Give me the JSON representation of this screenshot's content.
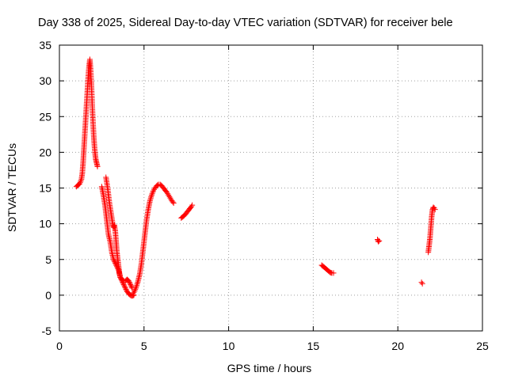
{
  "chart_data": {
    "type": "scatter",
    "title": "Day 338 of 2025, Sidereal Day-to-day VTEC variation (SDTVAR) for receiver bele",
    "xlabel": "GPS time / hours",
    "ylabel": "SDTVAR / TECUs",
    "xlim": [
      0,
      25
    ],
    "ylim": [
      -5,
      35
    ],
    "xticks": [
      0,
      5,
      10,
      15,
      20,
      25
    ],
    "yticks": [
      -5,
      0,
      5,
      10,
      15,
      20,
      25,
      30,
      35
    ],
    "xtick_labels": [
      "0",
      "5",
      "10",
      "15",
      "20",
      "25"
    ],
    "ytick_labels": [
      "-5",
      "0",
      "5",
      "10",
      "15",
      "20",
      "25",
      "30",
      "35"
    ],
    "grid": true,
    "marker": "+",
    "color": "#ff0000",
    "series": [
      {
        "name": "SDTVAR",
        "segments": [
          [
            [
              1.0,
              15.2
            ],
            [
              1.1,
              15.4
            ],
            [
              1.2,
              15.6
            ],
            [
              1.3,
              16.2
            ],
            [
              1.35,
              17.0
            ],
            [
              1.4,
              18.5
            ],
            [
              1.45,
              20.5
            ],
            [
              1.5,
              22.5
            ],
            [
              1.55,
              24.5
            ],
            [
              1.6,
              26.5
            ],
            [
              1.65,
              28.5
            ],
            [
              1.7,
              30.5
            ],
            [
              1.75,
              32.0
            ],
            [
              1.8,
              33.0
            ],
            [
              1.85,
              31.5
            ],
            [
              1.9,
              29.0
            ],
            [
              1.95,
              26.0
            ],
            [
              2.0,
              23.5
            ],
            [
              2.05,
              21.5
            ],
            [
              2.1,
              20.0
            ],
            [
              2.15,
              19.0
            ],
            [
              2.2,
              18.5
            ],
            [
              2.25,
              18.0
            ]
          ],
          [
            [
              2.5,
              15.2
            ],
            [
              2.6,
              14.0
            ],
            [
              2.7,
              12.5
            ],
            [
              2.8,
              10.5
            ],
            [
              2.9,
              8.5
            ],
            [
              3.0,
              7.5
            ],
            [
              3.1,
              6.0
            ],
            [
              3.2,
              5.0
            ],
            [
              3.3,
              4.5
            ],
            [
              3.4,
              4.0
            ],
            [
              3.5,
              3.5
            ],
            [
              3.6,
              2.5
            ],
            [
              3.7,
              2.0
            ],
            [
              3.8,
              1.5
            ],
            [
              3.9,
              1.0
            ],
            [
              4.0,
              0.5
            ],
            [
              4.1,
              0.2
            ],
            [
              4.2,
              0.0
            ],
            [
              4.3,
              -0.1
            ],
            [
              4.4,
              0.0
            ]
          ],
          [
            [
              2.75,
              16.5
            ],
            [
              2.85,
              15.0
            ],
            [
              2.95,
              13.0
            ],
            [
              3.05,
              11.5
            ],
            [
              3.15,
              10.0
            ],
            [
              3.2,
              9.5
            ],
            [
              3.25,
              9.8
            ],
            [
              3.3,
              9.0
            ],
            [
              3.35,
              7.5
            ],
            [
              3.4,
              6.0
            ],
            [
              3.45,
              5.0
            ],
            [
              3.5,
              4.0
            ],
            [
              3.55,
              3.0
            ],
            [
              3.6,
              2.5
            ],
            [
              3.7,
              2.2
            ],
            [
              3.8,
              2.0
            ],
            [
              3.9,
              2.0
            ],
            [
              4.0,
              2.2
            ],
            [
              4.1,
              2.0
            ],
            [
              4.2,
              1.5
            ],
            [
              4.3,
              1.0
            ]
          ],
          [
            [
              4.35,
              0.2
            ],
            [
              4.45,
              0.6
            ],
            [
              4.55,
              1.2
            ],
            [
              4.65,
              2.0
            ],
            [
              4.75,
              3.0
            ],
            [
              4.85,
              4.5
            ],
            [
              4.95,
              6.5
            ],
            [
              5.05,
              8.5
            ],
            [
              5.15,
              10.5
            ],
            [
              5.25,
              12.0
            ],
            [
              5.35,
              13.2
            ],
            [
              5.45,
              14.0
            ],
            [
              5.55,
              14.6
            ],
            [
              5.65,
              15.0
            ],
            [
              5.75,
              15.3
            ],
            [
              5.85,
              15.5
            ],
            [
              5.95,
              15.5
            ],
            [
              6.05,
              15.3
            ],
            [
              6.15,
              15.0
            ],
            [
              6.25,
              14.7
            ],
            [
              6.35,
              14.4
            ],
            [
              6.45,
              14.0
            ],
            [
              6.55,
              13.6
            ],
            [
              6.65,
              13.2
            ],
            [
              6.75,
              12.9
            ]
          ],
          [
            [
              7.2,
              10.8
            ],
            [
              7.3,
              11.0
            ],
            [
              7.4,
              11.2
            ],
            [
              7.5,
              11.5
            ],
            [
              7.6,
              11.8
            ],
            [
              7.7,
              12.1
            ],
            [
              7.8,
              12.4
            ],
            [
              7.85,
              12.6
            ]
          ],
          [
            [
              15.5,
              4.2
            ],
            [
              15.6,
              4.0
            ],
            [
              15.7,
              3.8
            ],
            [
              15.8,
              3.6
            ],
            [
              15.9,
              3.4
            ],
            [
              16.0,
              3.2
            ],
            [
              16.1,
              3.1
            ],
            [
              16.2,
              3.1
            ]
          ],
          [
            [
              18.8,
              7.8
            ],
            [
              18.85,
              7.5
            ],
            [
              18.9,
              7.6
            ]
          ],
          [
            [
              21.4,
              1.8
            ],
            [
              21.45,
              1.6
            ]
          ],
          [
            [
              21.8,
              6.0
            ],
            [
              21.85,
              7.0
            ],
            [
              21.9,
              8.0
            ],
            [
              21.95,
              9.5
            ],
            [
              22.0,
              11.0
            ],
            [
              22.05,
              12.0
            ],
            [
              22.1,
              12.3
            ],
            [
              22.15,
              12.2
            ],
            [
              22.2,
              12.0
            ]
          ]
        ]
      }
    ]
  }
}
